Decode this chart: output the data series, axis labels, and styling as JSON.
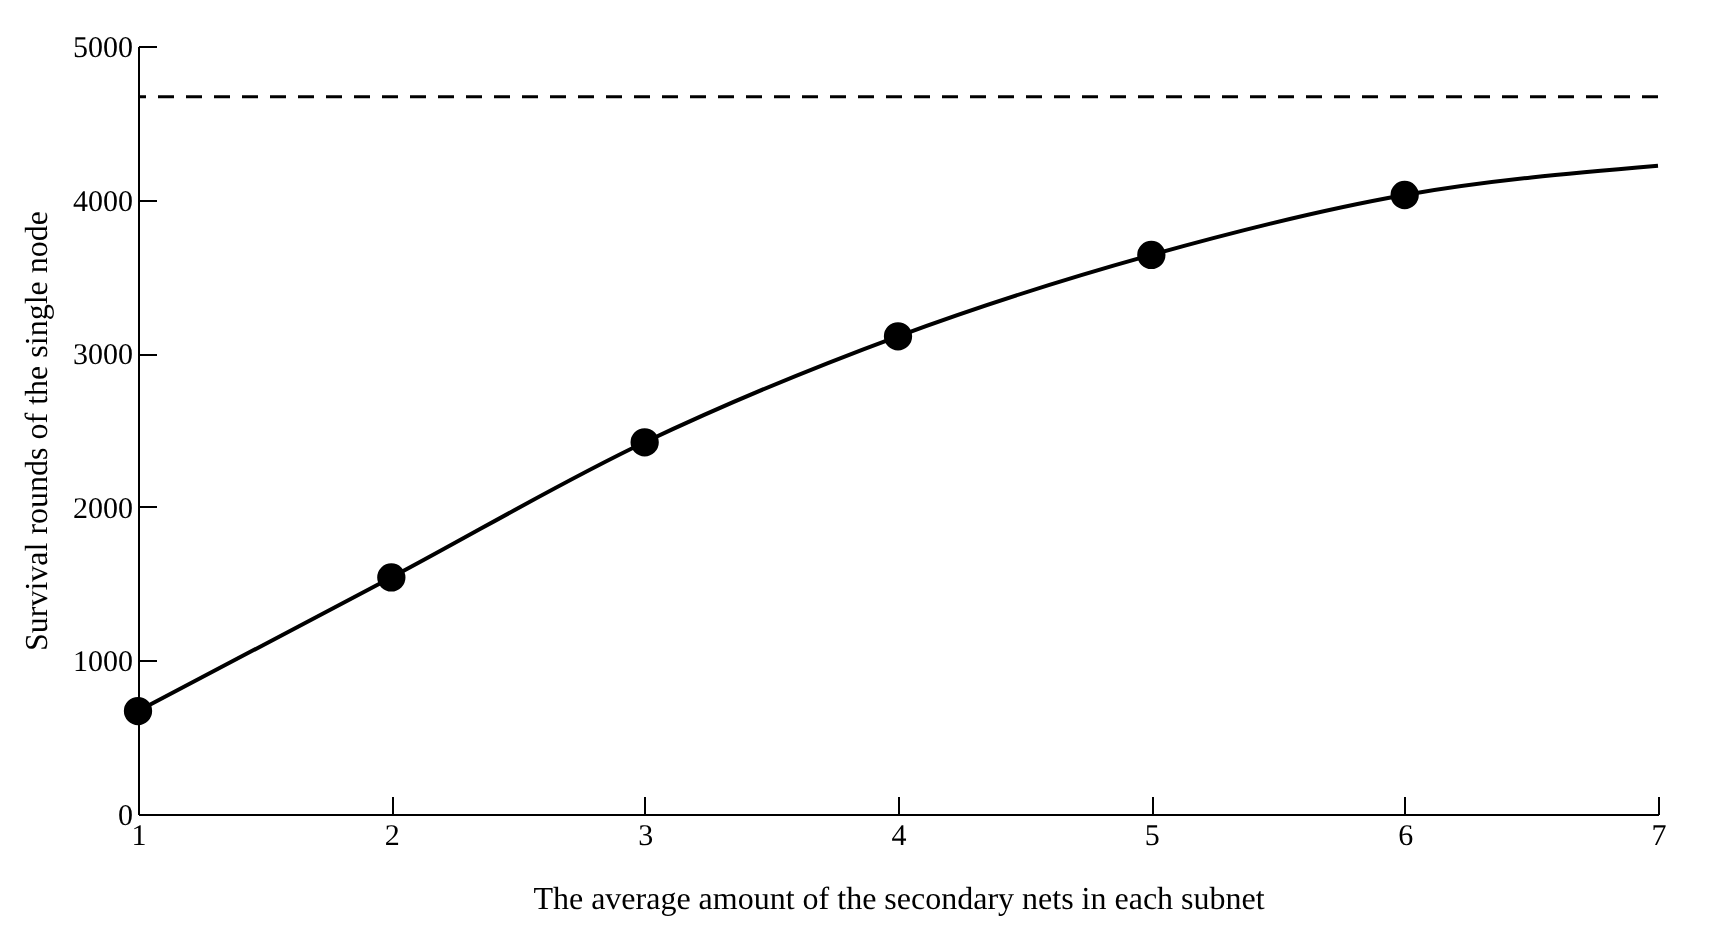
{
  "chart_data": {
    "type": "line",
    "xlabel": "The average amount of the secondary nets in each subnet",
    "ylabel": "Survival rounds of the single node",
    "xlim": [
      1,
      7
    ],
    "xticks": [
      1,
      2,
      3,
      4,
      5,
      6,
      7
    ],
    "ylim": [
      0,
      5000
    ],
    "yticks": [
      0,
      1000,
      2000,
      3000,
      4000,
      5000
    ],
    "grid": false,
    "line_style": "solid",
    "series": [
      {
        "type": "line",
        "color": "#000000",
        "x": [
          1,
          2,
          3,
          4,
          5,
          6,
          7
        ],
        "values": [
          670,
          1540,
          2420,
          3110,
          3640,
          4030,
          4220
        ]
      },
      {
        "type": "scatter",
        "color": "#000000",
        "x": [
          1,
          2,
          3,
          4,
          5,
          6
        ],
        "values": [
          670,
          1540,
          2420,
          3110,
          3640,
          4030
        ]
      }
    ],
    "ref_lines": [
      {
        "axis": "y",
        "value": 4670,
        "line_style": "dashed",
        "color": "#000000"
      }
    ]
  }
}
